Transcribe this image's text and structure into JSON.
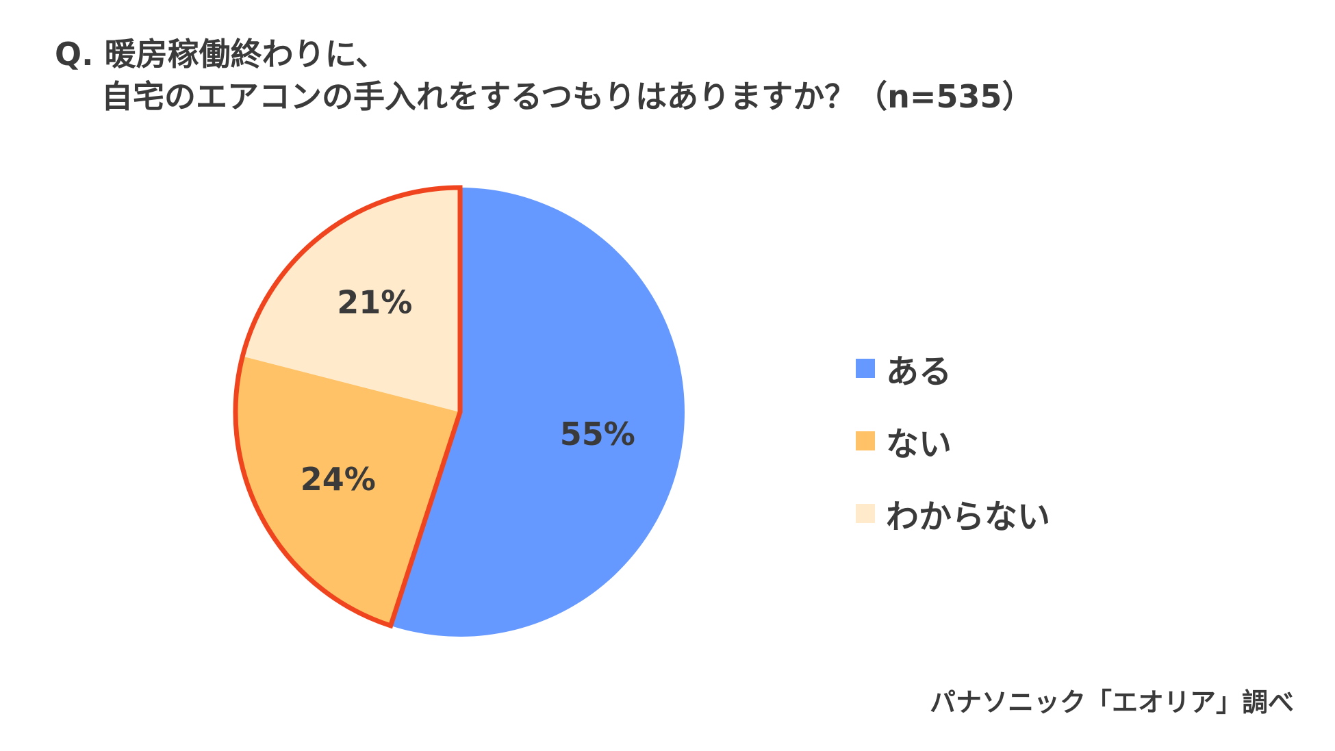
{
  "title": {
    "line1": "Q. 暖房稼働終わりに、",
    "line2": "自宅のエアコンの手入れをするつもりはありますか？（n=535）"
  },
  "source": "パナソニック「エオリア」調べ",
  "chart_data": {
    "type": "pie",
    "title": "Q. 暖房稼働終わりに、自宅のエアコンの手入れをするつもりはありますか？（n=535）",
    "categories": [
      "ある",
      "ない",
      "わからない"
    ],
    "values": [
      55,
      24,
      21
    ],
    "value_labels": [
      "55%",
      "24%",
      "21%"
    ],
    "colors": [
      "#6699FF",
      "#FFC266",
      "#FFEBCC"
    ],
    "highlight_color": "#F0441E",
    "highlighted": [
      "ない",
      "わからない"
    ],
    "legend_position": "right",
    "start_angle": "12 o'clock, clockwise"
  }
}
